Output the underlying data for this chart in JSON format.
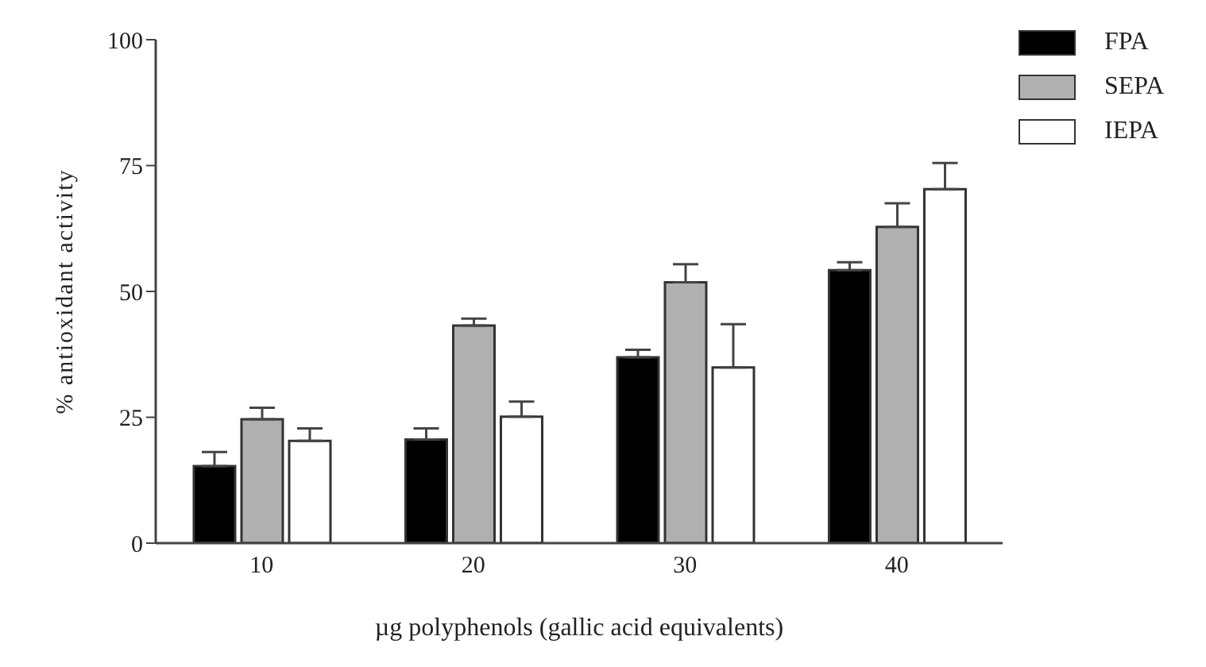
{
  "chart_data": {
    "type": "bar",
    "xlabel": "µg polyphenols (gallic acid equivalents)",
    "ylabel": "% antioxidant activity",
    "categories": [
      "10",
      "20",
      "30",
      "40"
    ],
    "series": [
      {
        "name": "FPA",
        "color": "#000000",
        "values": [
          15.3,
          20.6,
          36.9,
          54.2
        ],
        "errors": [
          [
            15.3,
            18.1
          ],
          [
            20.6,
            22.8
          ],
          [
            36.9,
            38.4
          ],
          [
            54.2,
            55.8
          ]
        ]
      },
      {
        "name": "SEPA",
        "color": "#b0b0b0",
        "values": [
          24.6,
          43.2,
          51.8,
          62.8
        ],
        "errors": [
          [
            24.6,
            26.9
          ],
          [
            43.2,
            44.6
          ],
          [
            51.8,
            55.4
          ],
          [
            62.8,
            67.5
          ]
        ]
      },
      {
        "name": "IEPA",
        "color": "#ffffff",
        "values": [
          20.3,
          25.1,
          34.9,
          70.3
        ],
        "errors": [
          [
            20.3,
            22.8
          ],
          [
            25.1,
            28.1
          ],
          [
            34.9,
            43.5
          ],
          [
            70.3,
            75.5
          ]
        ]
      }
    ],
    "ylim": [
      0,
      100
    ],
    "yticks": [
      0,
      25,
      50,
      75,
      100
    ],
    "grid": false,
    "legend": "top right"
  }
}
